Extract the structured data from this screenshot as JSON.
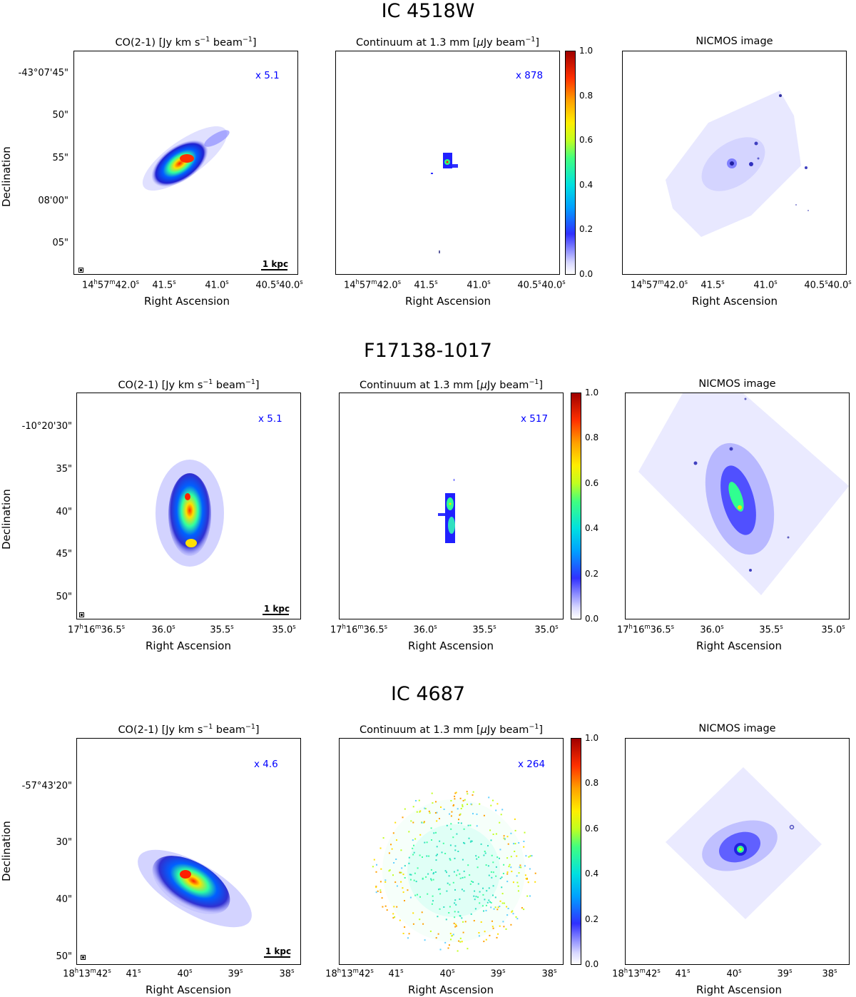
{
  "rows": [
    {
      "title": "IC 4518W",
      "panels": [
        {
          "title": "CO(2-1) [Jy km s⁻¹ beam⁻¹]",
          "factor": "x 5.1",
          "scale_label": "1 kpc"
        },
        {
          "title": "Continuum at 1.3 mm [μJy beam⁻¹]",
          "factor": "x 878"
        },
        {
          "title": "NICMOS image"
        }
      ],
      "yticks": [
        "-43°07'45\"",
        "50\"",
        "55\"",
        "08'00\"",
        "05\""
      ],
      "xticks": [
        "14h57m42.0s",
        "41.5s",
        "41.0s",
        "40.5s",
        "40.0s"
      ]
    },
    {
      "title": "F17138-1017",
      "panels": [
        {
          "title": "CO(2-1) [Jy km s⁻¹ beam⁻¹]",
          "factor": "x 5.1",
          "scale_label": "1 kpc"
        },
        {
          "title": "Continuum at 1.3 mm [μJy beam⁻¹]",
          "factor": "x 517"
        },
        {
          "title": "NICMOS image"
        }
      ],
      "yticks": [
        "-10°20'30\"",
        "35\"",
        "40\"",
        "45\"",
        "50\""
      ],
      "xticks": [
        "17h16m36.5s",
        "36.0s",
        "35.5s",
        "35.0s"
      ]
    },
    {
      "title": "IC 4687",
      "panels": [
        {
          "title": "CO(2-1) [Jy km s⁻¹ beam⁻¹]",
          "factor": "x 4.6",
          "scale_label": "1 kpc"
        },
        {
          "title": "Continuum at 1.3 mm [μJy beam⁻¹]",
          "factor": "x 264"
        },
        {
          "title": "NICMOS image"
        }
      ],
      "yticks": [
        "-57°43'20\"",
        "30\"",
        "40\"",
        "50\""
      ],
      "xticks": [
        "18h13m42s",
        "41s",
        "40s",
        "39s",
        "38s"
      ]
    }
  ],
  "axis_labels": {
    "x": "Right Ascension",
    "y": "Declination"
  },
  "colorbar_ticks": [
    "1.0",
    "0.8",
    "0.6",
    "0.4",
    "0.2",
    "0.0"
  ]
}
